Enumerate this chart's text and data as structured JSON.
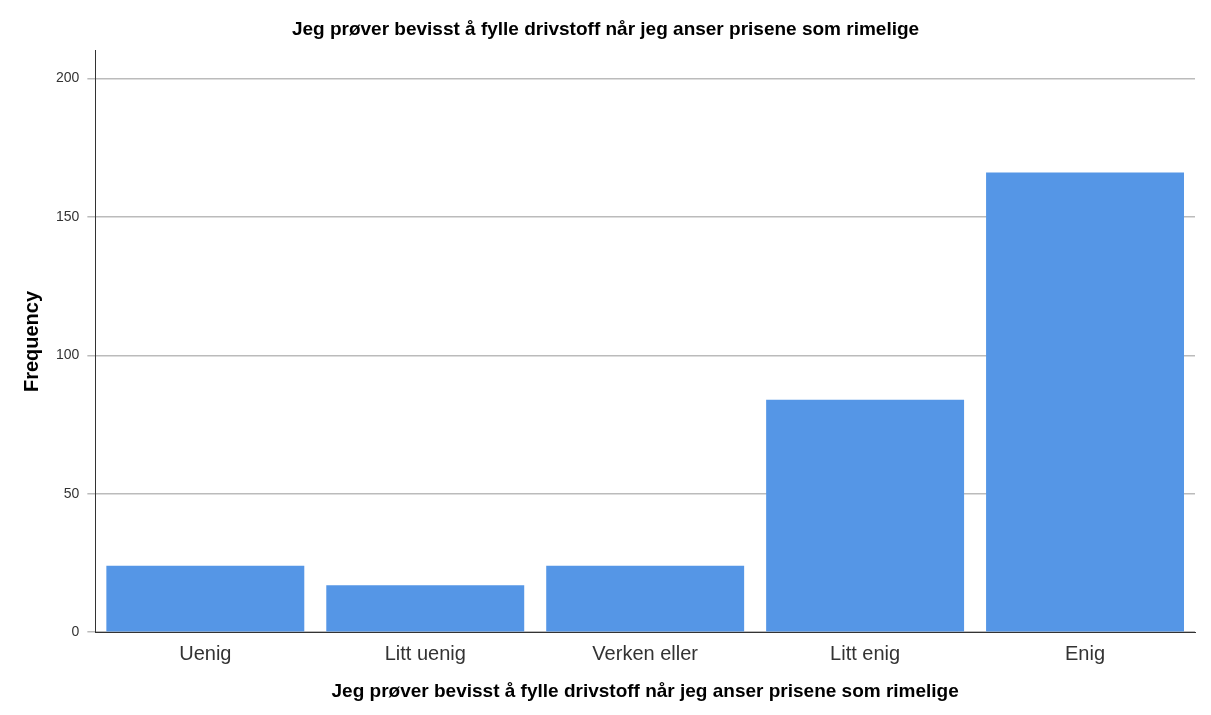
{
  "chart_data": {
    "type": "bar",
    "title": "Jeg prøver bevisst å fylle drivstoff når jeg anser prisene som rimelige",
    "xlabel": "Jeg prøver bevisst å fylle drivstoff når jeg anser prisene som rimelige",
    "ylabel": "Frequency",
    "categories": [
      "Uenig",
      "Litt uenig",
      "Verken eller",
      "Litt enig",
      "Enig"
    ],
    "values": [
      24,
      17,
      24,
      84,
      166
    ],
    "color": "#5596e6",
    "ylim": [
      0,
      210
    ],
    "yticks": [
      0,
      50,
      100,
      150,
      200
    ],
    "grid": "y"
  }
}
